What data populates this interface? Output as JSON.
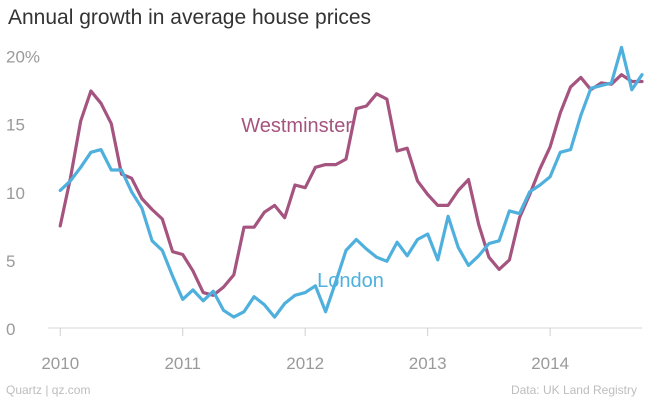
{
  "header": {
    "title": "Annual growth in average house prices"
  },
  "footer": {
    "source_left": "Quartz | qz.com",
    "source_right": "Data: UK Land Registry"
  },
  "chart_data": {
    "type": "line",
    "title": "Annual growth in average house prices",
    "xlabel": "",
    "ylabel": "",
    "xlim": [
      2009.9,
      2014.75
    ],
    "ylim": [
      0,
      21
    ],
    "grid": false,
    "legend": "inline-labels",
    "x_ticks": [
      {
        "value": 2010,
        "label": "2010"
      },
      {
        "value": 2011,
        "label": "2011"
      },
      {
        "value": 2012,
        "label": "2012"
      },
      {
        "value": 2013,
        "label": "2013"
      },
      {
        "value": 2014,
        "label": "2014"
      }
    ],
    "y_ticks": [
      {
        "value": 0,
        "label": "0"
      },
      {
        "value": 5,
        "label": "5"
      },
      {
        "value": 10,
        "label": "10"
      },
      {
        "value": 15,
        "label": "15"
      },
      {
        "value": 20,
        "label": "20%"
      }
    ],
    "series": [
      {
        "name": "Westminster",
        "color": "#a5547f",
        "label_at": [
          2011.93,
          14.4
        ],
        "points": [
          [
            2010.0,
            7.5
          ],
          [
            2010.083,
            11.0
          ],
          [
            2010.167,
            15.2
          ],
          [
            2010.25,
            17.4
          ],
          [
            2010.333,
            16.5
          ],
          [
            2010.417,
            15.0
          ],
          [
            2010.5,
            11.3
          ],
          [
            2010.583,
            11.0
          ],
          [
            2010.667,
            9.5
          ],
          [
            2010.75,
            8.7
          ],
          [
            2010.833,
            8.0
          ],
          [
            2010.917,
            5.6
          ],
          [
            2011.0,
            5.4
          ],
          [
            2011.083,
            4.2
          ],
          [
            2011.167,
            2.6
          ],
          [
            2011.25,
            2.4
          ],
          [
            2011.333,
            3.0
          ],
          [
            2011.417,
            3.9
          ],
          [
            2011.5,
            7.4
          ],
          [
            2011.583,
            7.4
          ],
          [
            2011.667,
            8.5
          ],
          [
            2011.75,
            9.0
          ],
          [
            2011.833,
            8.1
          ],
          [
            2011.917,
            10.5
          ],
          [
            2012.0,
            10.3
          ],
          [
            2012.083,
            11.8
          ],
          [
            2012.167,
            12.0
          ],
          [
            2012.25,
            12.0
          ],
          [
            2012.333,
            12.4
          ],
          [
            2012.417,
            16.1
          ],
          [
            2012.5,
            16.3
          ],
          [
            2012.583,
            17.2
          ],
          [
            2012.667,
            16.8
          ],
          [
            2012.75,
            13.0
          ],
          [
            2012.833,
            13.2
          ],
          [
            2012.917,
            10.8
          ],
          [
            2013.0,
            9.8
          ],
          [
            2013.083,
            9.0
          ],
          [
            2013.167,
            9.0
          ],
          [
            2013.25,
            10.1
          ],
          [
            2013.333,
            10.9
          ],
          [
            2013.417,
            7.6
          ],
          [
            2013.5,
            5.2
          ],
          [
            2013.583,
            4.3
          ],
          [
            2013.667,
            5.0
          ],
          [
            2013.75,
            8.1
          ],
          [
            2013.833,
            9.8
          ],
          [
            2013.917,
            11.7
          ],
          [
            2014.0,
            13.3
          ],
          [
            2014.083,
            15.8
          ],
          [
            2014.167,
            17.7
          ],
          [
            2014.25,
            18.4
          ],
          [
            2014.333,
            17.5
          ],
          [
            2014.417,
            18.0
          ],
          [
            2014.5,
            17.9
          ],
          [
            2014.583,
            18.6
          ],
          [
            2014.667,
            18.1
          ],
          [
            2014.75,
            18.1
          ]
        ]
      },
      {
        "name": "London",
        "color": "#4fb0dd",
        "label_at": [
          2012.37,
          3.0
        ],
        "points": [
          [
            2010.0,
            10.1
          ],
          [
            2010.083,
            10.8
          ],
          [
            2010.167,
            11.8
          ],
          [
            2010.25,
            12.9
          ],
          [
            2010.333,
            13.1
          ],
          [
            2010.417,
            11.6
          ],
          [
            2010.5,
            11.6
          ],
          [
            2010.583,
            10.0
          ],
          [
            2010.667,
            8.8
          ],
          [
            2010.75,
            6.4
          ],
          [
            2010.833,
            5.7
          ],
          [
            2010.917,
            3.8
          ],
          [
            2011.0,
            2.1
          ],
          [
            2011.083,
            2.8
          ],
          [
            2011.167,
            2.0
          ],
          [
            2011.25,
            2.7
          ],
          [
            2011.333,
            1.3
          ],
          [
            2011.417,
            0.8
          ],
          [
            2011.5,
            1.2
          ],
          [
            2011.583,
            2.3
          ],
          [
            2011.667,
            1.7
          ],
          [
            2011.75,
            0.8
          ],
          [
            2011.833,
            1.8
          ],
          [
            2011.917,
            2.4
          ],
          [
            2012.0,
            2.6
          ],
          [
            2012.083,
            3.1
          ],
          [
            2012.167,
            1.2
          ],
          [
            2012.25,
            3.4
          ],
          [
            2012.333,
            5.7
          ],
          [
            2012.417,
            6.5
          ],
          [
            2012.5,
            5.8
          ],
          [
            2012.583,
            5.2
          ],
          [
            2012.667,
            4.9
          ],
          [
            2012.75,
            6.3
          ],
          [
            2012.833,
            5.3
          ],
          [
            2012.917,
            6.5
          ],
          [
            2013.0,
            6.9
          ],
          [
            2013.083,
            5.0
          ],
          [
            2013.167,
            8.2
          ],
          [
            2013.25,
            5.9
          ],
          [
            2013.333,
            4.6
          ],
          [
            2013.417,
            5.3
          ],
          [
            2013.5,
            6.2
          ],
          [
            2013.583,
            6.4
          ],
          [
            2013.667,
            8.6
          ],
          [
            2013.75,
            8.4
          ],
          [
            2013.833,
            10.0
          ],
          [
            2013.917,
            10.5
          ],
          [
            2014.0,
            11.1
          ],
          [
            2014.083,
            12.9
          ],
          [
            2014.167,
            13.1
          ],
          [
            2014.25,
            15.6
          ],
          [
            2014.333,
            17.6
          ],
          [
            2014.417,
            17.8
          ],
          [
            2014.5,
            18.0
          ],
          [
            2014.583,
            20.6
          ],
          [
            2014.667,
            17.5
          ],
          [
            2014.75,
            18.6
          ]
        ]
      }
    ]
  }
}
